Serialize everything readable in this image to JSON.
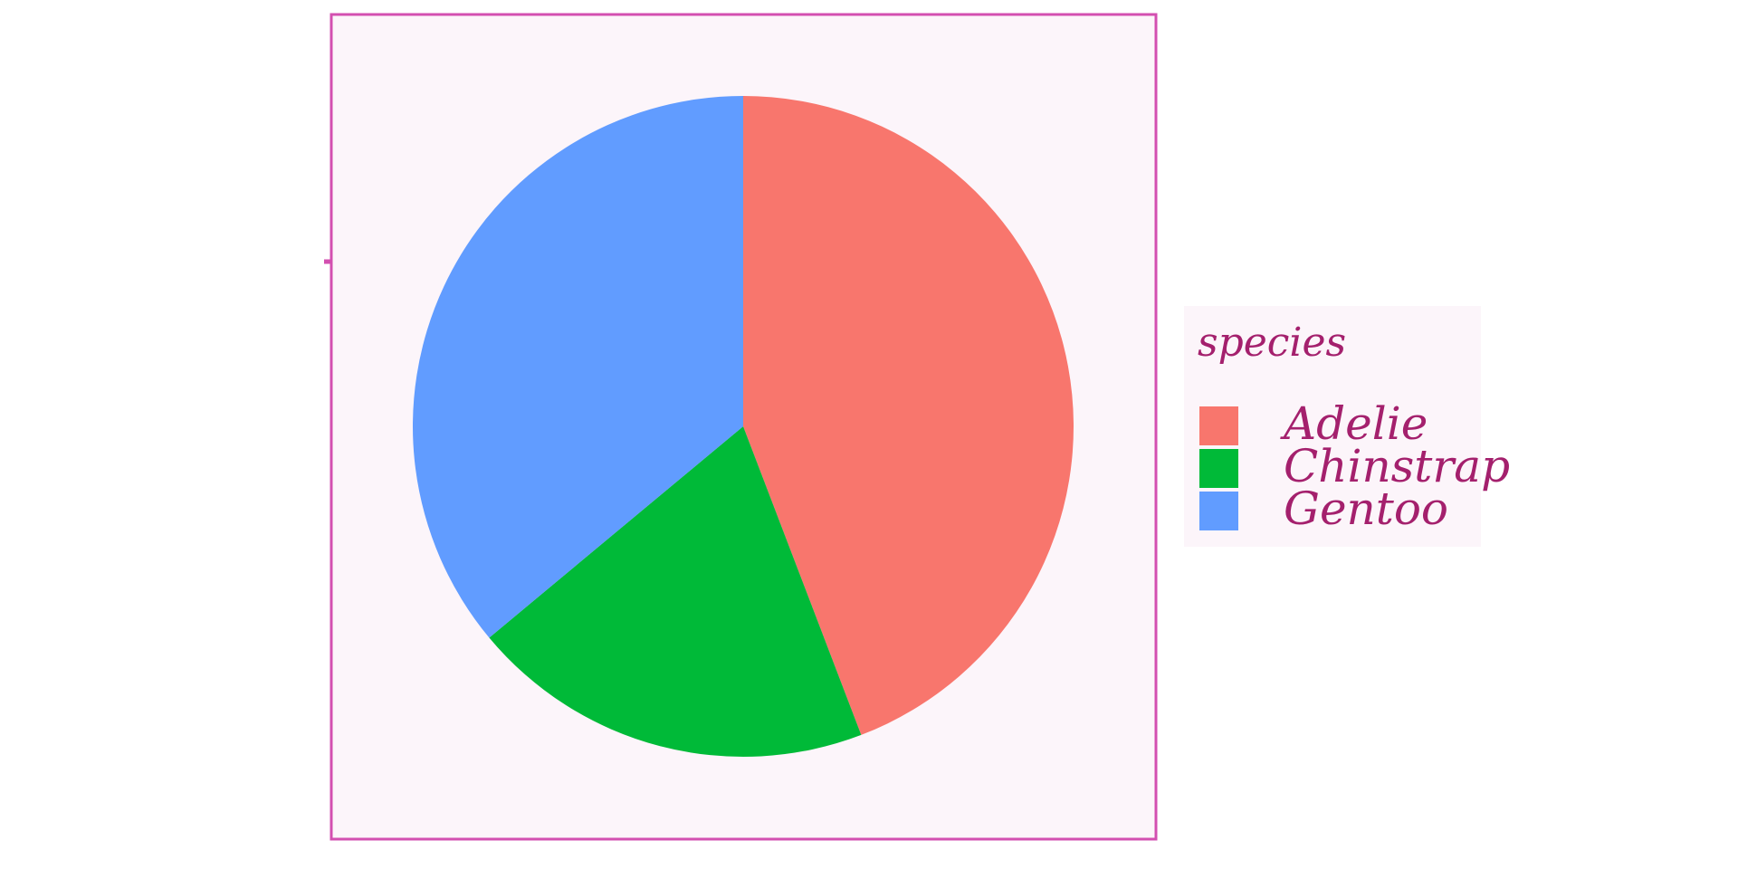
{
  "chart_data": {
    "type": "pie",
    "legend_title": "species",
    "legend_placement": "right",
    "series": [
      {
        "name": "Adelie",
        "value": 152,
        "color": "#f8766d"
      },
      {
        "name": "Chinstrap",
        "value": 68,
        "color": "#00ba38"
      },
      {
        "name": "Gentoo",
        "value": 124,
        "color": "#619cff"
      }
    ],
    "start_angle_deg": 0,
    "direction": "clockwise"
  },
  "colors": {
    "panel_background": "#fcf5fa",
    "panel_border": "#d34fb0",
    "legend_background": "#fcf5fa",
    "text": "#a4206d"
  }
}
